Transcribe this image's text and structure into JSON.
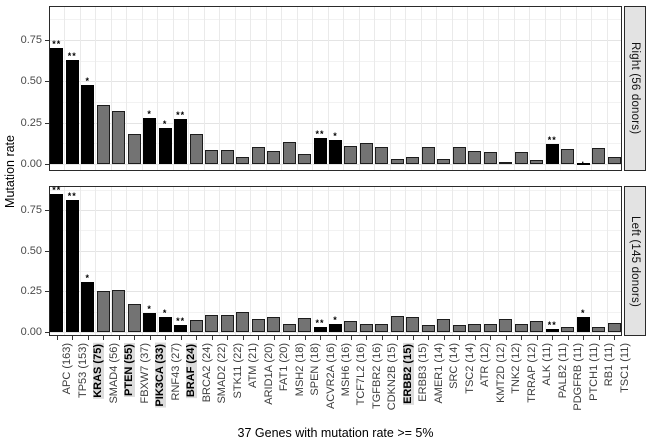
{
  "figure": {
    "ylabel": "Mutation rate",
    "caption": "37 Genes with mutation rate >= 5%"
  },
  "colors": {
    "bar_default": "#737373",
    "bar_highlight": "#000000",
    "strip_background": "#e3e3e3",
    "panel_border": "#2a2a2a",
    "grid_major": "#e4e4e4",
    "grid_minor": "#f2f2f2"
  },
  "chart_data": {
    "type": "bar",
    "title": "",
    "xlabel": "37 Genes with mutation rate >= 5%",
    "ylabel": "Mutation rate",
    "ylim": [
      0,
      0.95
    ],
    "grid": true,
    "legend_position": "none",
    "yticks": [
      "0.00",
      "0.25",
      "0.50",
      "0.75"
    ],
    "ytick_values": [
      0,
      0.25,
      0.5,
      0.75
    ],
    "yminor_values": [
      0.125,
      0.375,
      0.625,
      0.875
    ],
    "categories": [
      "APC (163)",
      "TP53 (153)",
      "KRAS (75)",
      "SMAD4 (56)",
      "PTEN (55)",
      "FBXW7 (37)",
      "PIK3CA (33)",
      "RNF43 (27)",
      "BRAF (24)",
      "BRCA2 (24)",
      "SMAD2 (22)",
      "STK11 (22)",
      "ATM (21)",
      "ARID1A (20)",
      "FAT1 (20)",
      "MSH2 (18)",
      "SPEN (18)",
      "ACVR2A (16)",
      "MSH6 (16)",
      "TCF7L2 (16)",
      "TGFBR2 (16)",
      "CDKN2B (15)",
      "ERBB2 (15)",
      "ERBB3 (15)",
      "AMER1 (14)",
      "SRC (14)",
      "TSC2 (14)",
      "ATR (12)",
      "KMT2D (12)",
      "TNK2 (12)",
      "TRRAP (12)",
      "ALK (11)",
      "PALB2 (11)",
      "PDGFRB (11)",
      "PTCH1 (11)",
      "RB1 (11)",
      "TSC1 (11)"
    ],
    "bold_categories": [
      "KRAS (75)",
      "PTEN (55)",
      "PIK3CA (33)",
      "BRAF (24)",
      "ERBB2 (15)"
    ],
    "black_bar_indices": [
      0,
      1,
      2,
      6,
      7,
      8,
      17,
      18,
      32,
      34
    ],
    "facets": [
      {
        "label": "Right (56 donors)",
        "values": [
          0.7,
          0.63,
          0.48,
          0.355,
          0.32,
          0.18,
          0.275,
          0.22,
          0.27,
          0.18,
          0.085,
          0.085,
          0.045,
          0.105,
          0.08,
          0.13,
          0.06,
          0.16,
          0.145,
          0.11,
          0.125,
          0.105,
          0.03,
          0.045,
          0.105,
          0.03,
          0.1,
          0.08,
          0.07,
          0.012,
          0.07,
          0.027,
          0.12,
          0.09,
          0.004,
          0.095,
          0.04
        ],
        "sig_markers": [
          "**",
          "**",
          "*",
          "",
          "",
          "",
          "*",
          "*",
          "**",
          "",
          "",
          "",
          "",
          "",
          "",
          "",
          "",
          "**",
          "*",
          "",
          "",
          "",
          "",
          "",
          "",
          "",
          "",
          "",
          "",
          "",
          "",
          "",
          "**",
          "",
          ".",
          "",
          ""
        ]
      },
      {
        "label": "Left (145 donors)",
        "values": [
          0.85,
          0.81,
          0.31,
          0.25,
          0.26,
          0.175,
          0.115,
          0.095,
          0.045,
          0.075,
          0.105,
          0.105,
          0.12,
          0.08,
          0.09,
          0.05,
          0.085,
          0.03,
          0.05,
          0.065,
          0.05,
          0.05,
          0.1,
          0.095,
          0.04,
          0.08,
          0.045,
          0.05,
          0.05,
          0.08,
          0.05,
          0.065,
          0.02,
          0.03,
          0.09,
          0.03,
          0.055
        ],
        "sig_markers": [
          "**",
          "**",
          "*",
          "",
          "",
          "",
          "*",
          "*",
          "**",
          "",
          "",
          "",
          "",
          "",
          "",
          "",
          "",
          "**",
          "*",
          "",
          "",
          "",
          "",
          "",
          "",
          "",
          "",
          "",
          "",
          "",
          "",
          "",
          "**",
          "",
          "*",
          "",
          ""
        ]
      }
    ]
  }
}
